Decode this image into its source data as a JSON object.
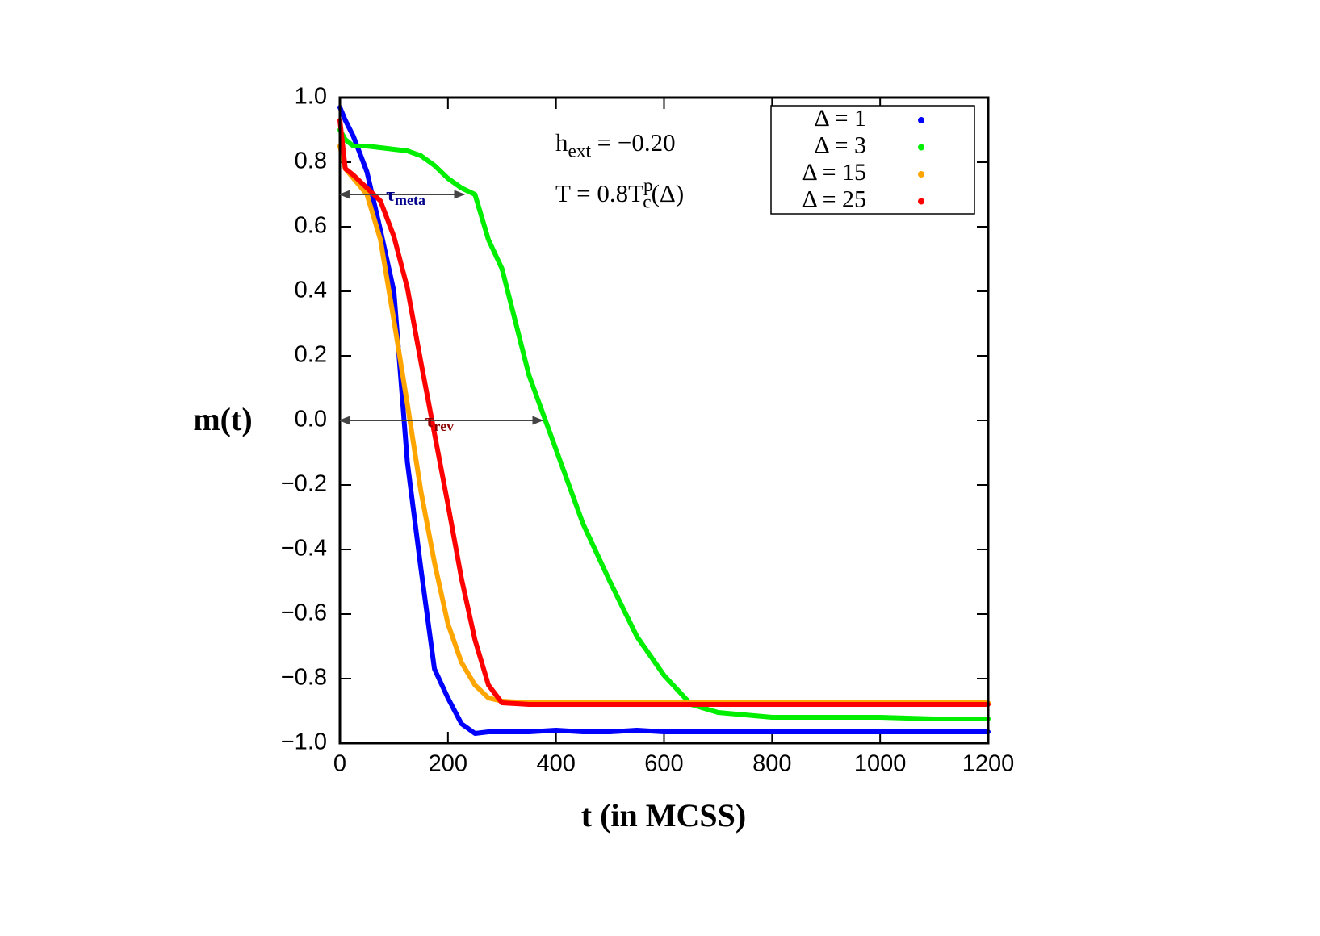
{
  "chart_data": {
    "type": "line",
    "xlabel": "t (in MCSS)",
    "ylabel": "m(t)",
    "x": [
      0,
      10,
      25,
      50,
      75,
      100,
      125,
      150,
      175,
      200,
      225,
      250,
      275,
      300,
      350,
      400,
      450,
      500,
      550,
      600,
      650,
      700,
      800,
      900,
      1000,
      1100,
      1200
    ],
    "series": [
      {
        "name": "Δ = 1",
        "color": "#0000ff",
        "values": [
          0.97,
          0.93,
          0.88,
          0.77,
          0.59,
          0.4,
          -0.13,
          -0.46,
          -0.77,
          -0.86,
          -0.94,
          -0.97,
          -0.965,
          -0.965,
          -0.965,
          -0.96,
          -0.965,
          -0.965,
          -0.96,
          -0.965,
          -0.965,
          -0.965,
          -0.965,
          -0.965,
          -0.965,
          -0.965,
          -0.965
        ]
      },
      {
        "name": "Δ = 3",
        "color": "#00ee00",
        "values": [
          0.9,
          0.87,
          0.85,
          0.85,
          0.845,
          0.84,
          0.835,
          0.82,
          0.79,
          0.75,
          0.72,
          0.7,
          0.56,
          0.47,
          0.14,
          -0.09,
          -0.32,
          -0.5,
          -0.67,
          -0.79,
          -0.88,
          -0.905,
          -0.92,
          -0.92,
          -0.92,
          -0.925,
          -0.925
        ]
      },
      {
        "name": "Δ = 15",
        "color": "#ffa500",
        "values": [
          0.85,
          0.78,
          0.75,
          0.7,
          0.56,
          0.31,
          0.05,
          -0.22,
          -0.44,
          -0.63,
          -0.75,
          -0.82,
          -0.86,
          -0.87,
          -0.875,
          -0.875,
          -0.875,
          -0.875,
          -0.875,
          -0.875,
          -0.875,
          -0.875,
          -0.875,
          -0.875,
          -0.875,
          -0.875,
          -0.875
        ]
      },
      {
        "name": "Δ = 25",
        "color": "#ff0000",
        "values": [
          0.93,
          0.78,
          0.76,
          0.72,
          0.68,
          0.57,
          0.41,
          0.18,
          -0.04,
          -0.26,
          -0.49,
          -0.68,
          -0.82,
          -0.875,
          -0.88,
          -0.88,
          -0.88,
          -0.88,
          -0.88,
          -0.88,
          -0.88,
          -0.88,
          -0.88,
          -0.88,
          -0.88,
          -0.88,
          -0.88
        ]
      }
    ],
    "xlim": [
      0,
      1200
    ],
    "ylim": [
      -1,
      1
    ],
    "xticks": [
      0,
      200,
      400,
      600,
      800,
      1000,
      1200
    ],
    "yticks": [
      {
        "value": -1,
        "label": "−1.0"
      },
      {
        "value": -0.8,
        "label": "−0.8"
      },
      {
        "value": -0.6,
        "label": "−0.6"
      },
      {
        "value": -0.4,
        "label": "−0.4"
      },
      {
        "value": -0.2,
        "label": "−0.2"
      },
      {
        "value": 0,
        "label": "0.0"
      },
      0.2,
      0.4,
      0.6,
      0.8,
      {
        "value": 1,
        "label": "1.0"
      }
    ],
    "legend": "upper right",
    "annotations": [
      {
        "parts": [
          {
            "text": "h"
          },
          {
            "text": "ext",
            "style": "sub"
          },
          {
            "text": " = −0.20"
          }
        ]
      },
      {
        "parts": [
          {
            "text": "T = 0.8T"
          },
          {
            "text": "p",
            "style": "sup"
          },
          {
            "text": "c",
            "style": "sub-under"
          },
          {
            "text": "(Δ)"
          }
        ]
      }
    ],
    "arrows": [
      {
        "x": [
          0,
          230
        ],
        "y": 0.7,
        "color": "#00008b",
        "parts": [
          {
            "text": "τ"
          },
          {
            "text": "meta",
            "style": "sub"
          }
        ]
      },
      {
        "x": [
          0,
          375
        ],
        "y": 0,
        "color": "#8b0000",
        "parts": [
          {
            "text": "τ"
          },
          {
            "text": "rev",
            "style": "sub"
          }
        ]
      }
    ]
  }
}
